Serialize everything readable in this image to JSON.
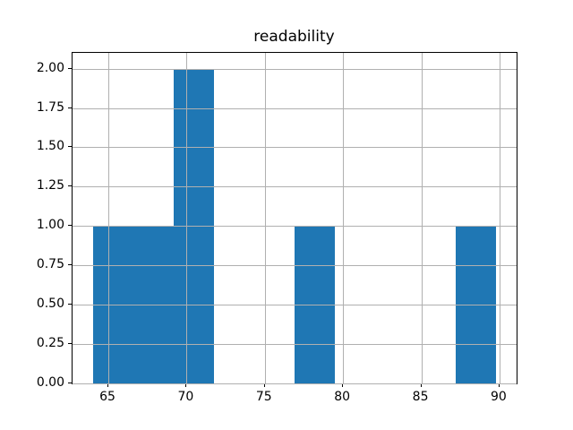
{
  "colors": {
    "bar": "#1f77b4",
    "grid": "#b0b0b0",
    "spine": "#000000",
    "text": "#000000",
    "background": "#ffffff"
  },
  "chart_data": {
    "type": "histogram",
    "title": "readability",
    "xlabel": "",
    "ylabel": "",
    "bin_edges": [
      64.0,
      66.58,
      69.16,
      71.74,
      74.32,
      76.9,
      79.48,
      82.06,
      84.64,
      87.22,
      89.8
    ],
    "counts": [
      1,
      1,
      2,
      0,
      0,
      1,
      0,
      0,
      0,
      1
    ],
    "xlim": [
      62.71,
      91.09
    ],
    "ylim": [
      0,
      2.1
    ],
    "xticks": [
      65,
      70,
      75,
      80,
      85,
      90
    ],
    "xtick_labels": [
      "65",
      "70",
      "75",
      "80",
      "85",
      "90"
    ],
    "yticks": [
      0,
      0.25,
      0.5,
      0.75,
      1.0,
      1.25,
      1.5,
      1.75,
      2.0
    ],
    "ytick_labels": [
      "0.00",
      "0.25",
      "0.50",
      "0.75",
      "1.00",
      "1.25",
      "1.50",
      "1.75",
      "2.00"
    ],
    "grid": true,
    "legend": null
  }
}
